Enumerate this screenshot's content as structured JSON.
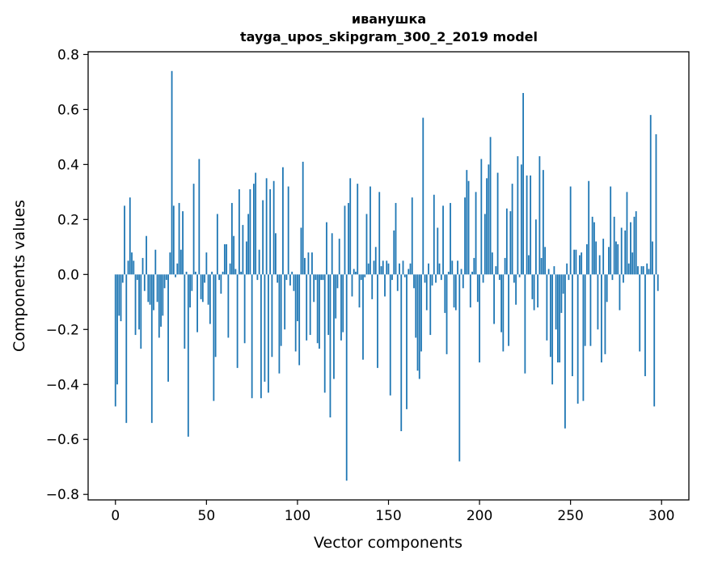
{
  "chart_data": {
    "type": "bar",
    "title": "иванушка",
    "subtitle": "tayga_upos_skipgram_300_2_2019 model",
    "xlabel": "Vector components",
    "ylabel": "Components values",
    "xlim": [
      -15,
      315
    ],
    "ylim": [
      -0.82,
      0.81
    ],
    "xticks": [
      0,
      50,
      100,
      150,
      200,
      250,
      300
    ],
    "xtick_labels": [
      "0",
      "50",
      "100",
      "150",
      "200",
      "250",
      "300"
    ],
    "yticks": [
      -0.8,
      -0.6,
      -0.4,
      -0.2,
      0.0,
      0.2,
      0.4,
      0.6,
      0.8
    ],
    "ytick_labels": [
      "−0.8",
      "−0.6",
      "−0.4",
      "−0.2",
      "0.0",
      "0.2",
      "0.4",
      "0.6",
      "0.8"
    ],
    "grid": false,
    "bar_color": "#1f77b4",
    "values": [
      -0.48,
      -0.4,
      -0.15,
      -0.17,
      -0.03,
      0.25,
      -0.54,
      0.05,
      0.28,
      0.08,
      0.05,
      -0.22,
      -0.02,
      -0.2,
      -0.27,
      0.06,
      -0.06,
      0.14,
      -0.1,
      -0.11,
      -0.54,
      -0.13,
      0.09,
      -0.1,
      -0.23,
      -0.19,
      -0.15,
      -0.05,
      -0.02,
      -0.39,
      0.08,
      0.74,
      0.25,
      -0.01,
      0.04,
      0.26,
      0.09,
      0.23,
      -0.27,
      0.01,
      -0.59,
      -0.12,
      -0.06,
      0.33,
      0.01,
      -0.21,
      0.42,
      -0.09,
      -0.1,
      -0.03,
      0.08,
      -0.11,
      -0.18,
      0.01,
      -0.46,
      -0.3,
      0.22,
      -0.02,
      -0.07,
      0.01,
      0.11,
      0.11,
      -0.23,
      0.04,
      0.26,
      0.14,
      0.02,
      -0.34,
      0.31,
      0.01,
      0.18,
      -0.25,
      0.12,
      0.22,
      0.31,
      -0.45,
      0.33,
      0.37,
      -0.02,
      0.09,
      -0.45,
      0.27,
      -0.39,
      0.35,
      -0.43,
      0.31,
      -0.3,
      0.34,
      0.15,
      -0.03,
      -0.36,
      -0.26,
      0.39,
      -0.2,
      -0.02,
      0.32,
      -0.04,
      0.01,
      -0.06,
      -0.28,
      -0.17,
      -0.33,
      0.17,
      0.41,
      0.06,
      -0.24,
      0.08,
      -0.22,
      0.08,
      -0.1,
      -0.02,
      -0.25,
      -0.27,
      -0.02,
      -0.02,
      -0.43,
      0.19,
      -0.22,
      -0.52,
      0.15,
      -0.38,
      -0.16,
      -0.05,
      0.13,
      -0.24,
      -0.21,
      0.25,
      -0.75,
      0.26,
      0.35,
      -0.08,
      0.02,
      0.01,
      0.33,
      -0.12,
      -0.02,
      -0.31,
      -0.01,
      0.22,
      0.04,
      0.32,
      -0.09,
      0.05,
      0.1,
      -0.34,
      0.3,
      0.03,
      0.05,
      -0.08,
      0.05,
      0.04,
      -0.44,
      -0.02,
      0.16,
      0.26,
      -0.06,
      0.04,
      -0.57,
      0.05,
      -0.01,
      -0.49,
      0.02,
      0.04,
      0.28,
      -0.05,
      -0.23,
      -0.35,
      -0.38,
      -0.28,
      0.57,
      -0.03,
      -0.13,
      0.04,
      -0.22,
      -0.04,
      0.29,
      -0.03,
      0.17,
      0.04,
      -0.02,
      0.25,
      -0.14,
      -0.29,
      0.01,
      0.26,
      0.05,
      -0.12,
      -0.13,
      0.05,
      -0.68,
      0.02,
      -0.05,
      0.28,
      0.38,
      0.34,
      -0.12,
      0.01,
      0.06,
      0.3,
      -0.1,
      -0.32,
      0.42,
      -0.03,
      0.22,
      0.35,
      0.4,
      0.5,
      0.08,
      -0.18,
      0.03,
      0.37,
      -0.02,
      -0.21,
      -0.28,
      0.06,
      0.24,
      -0.26,
      0.23,
      0.33,
      -0.03,
      -0.11,
      0.43,
      -0.01,
      0.4,
      0.66,
      -0.36,
      0.36,
      0.07,
      0.36,
      -0.09,
      -0.13,
      0.2,
      -0.12,
      0.43,
      0.06,
      0.38,
      0.1,
      -0.24,
      0.02,
      -0.3,
      -0.4,
      0.03,
      -0.2,
      -0.32,
      -0.32,
      -0.14,
      -0.07,
      -0.56,
      0.04,
      -0.02,
      0.32,
      -0.37,
      0.09,
      0.09,
      -0.47,
      0.07,
      0.08,
      -0.46,
      -0.26,
      0.11,
      0.34,
      -0.26,
      0.21,
      0.19,
      0.12,
      -0.2,
      0.07,
      -0.32,
      0.13,
      -0.29,
      -0.1,
      0.1,
      0.32,
      -0.02,
      0.21,
      0.12,
      0.11,
      -0.13,
      0.17,
      -0.03,
      0.16,
      0.3,
      0.04,
      0.19,
      0.08,
      0.21,
      0.23,
      0.03,
      -0.28,
      0.03,
      0.03,
      -0.37,
      0.04,
      0.02,
      0.58,
      0.12,
      -0.48,
      0.51,
      -0.06
    ]
  }
}
